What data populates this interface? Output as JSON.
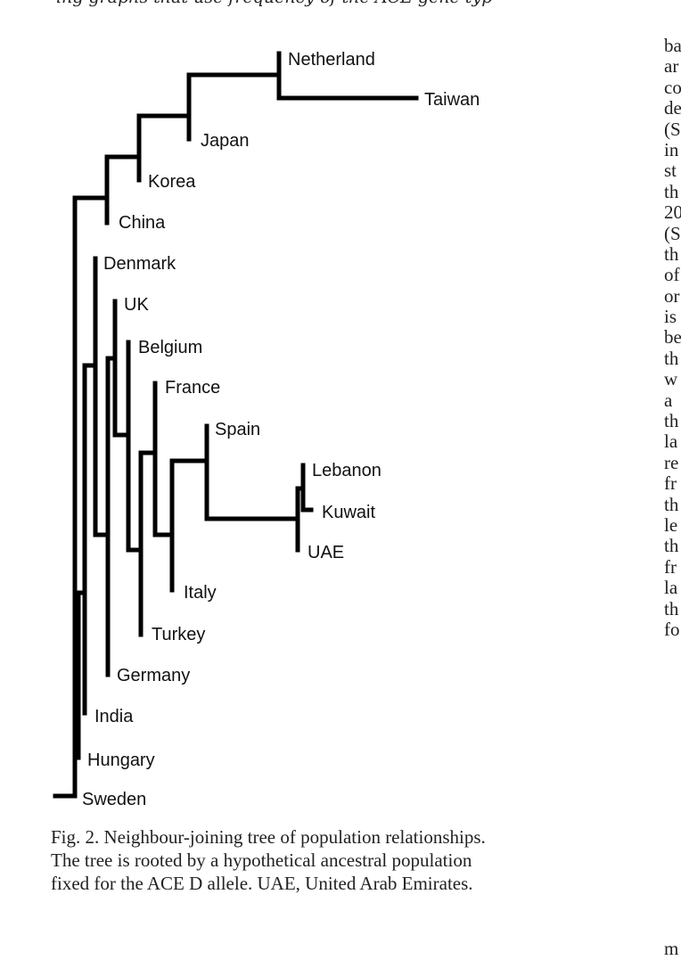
{
  "header_fragment": "ing graphs that use frequency of the ACE gene typ",
  "figure": {
    "type": "neighbour-joining tree",
    "taxa": [
      "Netherland",
      "Taiwan",
      "Japan",
      "Korea",
      "China",
      "Denmark",
      "UK",
      "Belgium",
      "France",
      "Spain",
      "Lebanon",
      "Kuwait",
      "UAE",
      "Italy",
      "Turkey",
      "Germany",
      "India",
      "Hungary",
      "Sweden"
    ]
  },
  "caption": {
    "line1": "Fig. 2.  Neighbour-joining tree of population relationships.",
    "line2": "The tree is rooted by a hypothetical ancestral population",
    "line3": "fixed for the ACE D allele. UAE, United Arab Emirates."
  },
  "right_column": {
    "lines": [
      "ba",
      "ar",
      "co",
      "de",
      "(S",
      "in",
      "st",
      "th",
      "20",
      "(S",
      "th",
      "of",
      "or",
      "is",
      "be",
      "th",
      "w",
      "a",
      "th",
      "la",
      "re",
      "fr",
      "th",
      "le",
      "th",
      "fr",
      "la",
      "th",
      "fo"
    ],
    "last": "m"
  }
}
